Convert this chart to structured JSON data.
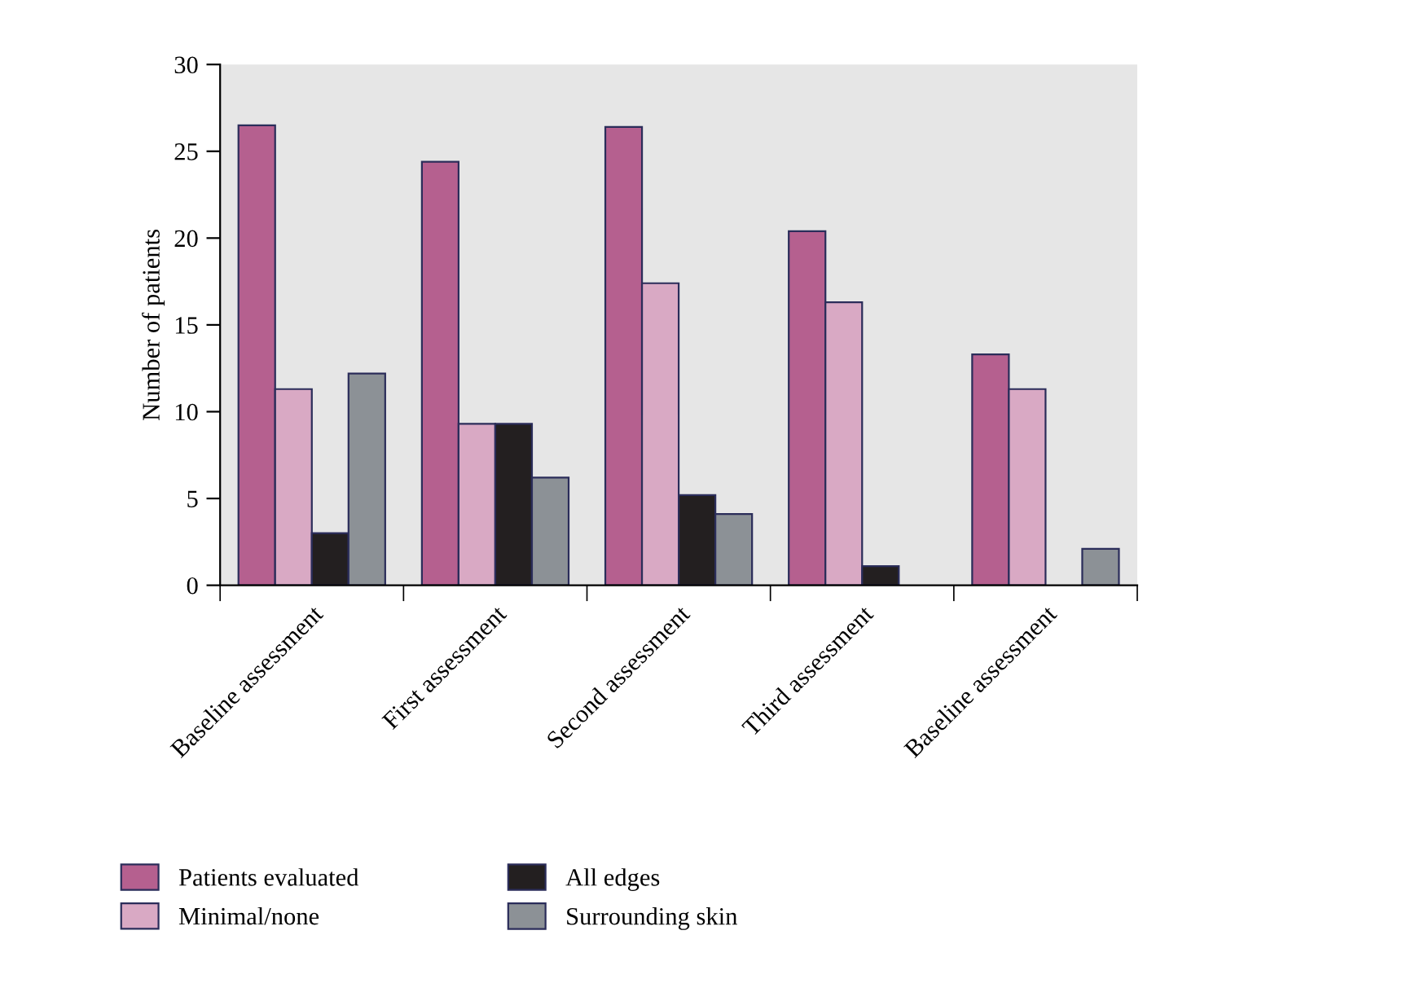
{
  "chart_data": {
    "type": "bar",
    "ylabel": "Number of patients",
    "categories": [
      "Baseline assessment",
      "First assessment",
      "Second assessment",
      "Third assessment",
      "Baseline assessment"
    ],
    "series": [
      {
        "name": "Patients evaluated",
        "color": "#b5608f",
        "values": [
          26.5,
          24.4,
          26.4,
          20.4,
          13.3
        ]
      },
      {
        "name": "Minimal/none",
        "color": "#d9a9c4",
        "values": [
          11.3,
          9.3,
          17.4,
          16.3,
          11.3
        ]
      },
      {
        "name": "All edges",
        "color": "#231f20",
        "values": [
          3.0,
          9.3,
          5.2,
          1.1,
          null
        ]
      },
      {
        "name": "Surrounding skin",
        "color": "#8c9196",
        "values": [
          12.2,
          6.2,
          4.1,
          null,
          2.1
        ]
      }
    ],
    "ylim": [
      0,
      30
    ],
    "yticks": [
      0,
      5,
      10,
      15,
      20,
      25,
      30
    ],
    "grid": false,
    "legend": "bottom"
  }
}
